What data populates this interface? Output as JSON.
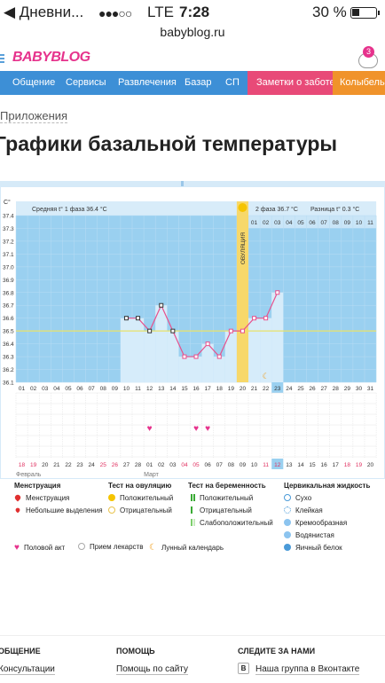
{
  "status_bar": {
    "back_label": "◀ Дневни...",
    "signal": "●●●○○",
    "network": "LTE",
    "time": "7:28",
    "battery": "30 %"
  },
  "url": "babyblog.ru",
  "header": {
    "logo": "BABYBLOG",
    "notifications_count": "3"
  },
  "nav": {
    "items": [
      "Общение",
      "Сервисы",
      "Развлечения",
      "Базар",
      "СП"
    ],
    "highlight_pink": "Заметки о заботе",
    "highlight_orange": "Колыбель"
  },
  "breadcrumb": "Приложения",
  "page_title": "Графики базальной температуры",
  "chart_data": {
    "type": "line",
    "ylabel": "C°",
    "y_ticks": [
      "37.4",
      "37.3",
      "37.2",
      "37.1",
      "37.0",
      "36.9",
      "36.8",
      "36.7",
      "36.6",
      "36.5",
      "36.4",
      "36.3",
      "36.2",
      "36.1"
    ],
    "ylim": [
      36.1,
      37.4
    ],
    "phase1_label": "Средняя t° 1 фаза 36.4 °C",
    "phase2_label": "2 фаза 36.7 °C",
    "diff_label": "Разница t° 0.3 °C",
    "ovulation_label": "ОВУЛЯЦИЯ",
    "ovulation_day": 20,
    "coverline": 36.5,
    "cycle_days": [
      "01",
      "02",
      "03",
      "04",
      "05",
      "06",
      "07",
      "08",
      "09",
      "10",
      "11",
      "12",
      "13",
      "14",
      "15",
      "16",
      "17",
      "18",
      "19",
      "20",
      "21",
      "22",
      "23",
      "24",
      "25",
      "26",
      "27",
      "28",
      "29",
      "30",
      "31"
    ],
    "phase2_days": [
      "01",
      "02",
      "03",
      "04",
      "05",
      "06",
      "07",
      "08",
      "09",
      "10",
      "11"
    ],
    "current_day": 23,
    "temperatures": [
      {
        "day": 10,
        "t": 36.6
      },
      {
        "day": 11,
        "t": 36.6
      },
      {
        "day": 12,
        "t": 36.5
      },
      {
        "day": 13,
        "t": 36.7
      },
      {
        "day": 14,
        "t": 36.5
      },
      {
        "day": 15,
        "t": 36.3
      },
      {
        "day": 16,
        "t": 36.3
      },
      {
        "day": 17,
        "t": 36.4
      },
      {
        "day": 18,
        "t": 36.3
      },
      {
        "day": 19,
        "t": 36.5
      },
      {
        "day": 20,
        "t": 36.5
      },
      {
        "day": 21,
        "t": 36.6
      },
      {
        "day": 22,
        "t": 36.6
      },
      {
        "day": 23,
        "t": 36.8
      }
    ],
    "intercourse_days": [
      12,
      16,
      17
    ],
    "moon_day": 22,
    "dates": [
      "18",
      "19",
      "20",
      "21",
      "22",
      "23",
      "24",
      "25",
      "26",
      "27",
      "28",
      "01",
      "02",
      "03",
      "04",
      "05",
      "06",
      "07",
      "08",
      "09",
      "10",
      "11",
      "12",
      "13",
      "14",
      "15",
      "16",
      "17",
      "18",
      "19",
      "20"
    ],
    "red_date_indexes": [
      0,
      1,
      7,
      8,
      14,
      15,
      21,
      22,
      28,
      29
    ],
    "month_labels": [
      {
        "index": 0,
        "label": "Февраль"
      },
      {
        "index": 11,
        "label": "Март"
      }
    ],
    "today_date_index": 22,
    "grid": true
  },
  "legend": {
    "menstruation": {
      "title": "Менструация",
      "items": [
        "Менструация",
        "Небольшие выделения"
      ]
    },
    "ovulation_test": {
      "title": "Тест на овуляцию",
      "items": [
        "Положительный",
        "Отрицательный"
      ]
    },
    "pregnancy_test": {
      "title": "Тест на беременность",
      "items": [
        "Положительный",
        "Отрицательный",
        "Слабоположительный"
      ]
    },
    "cervical": {
      "title": "Цервикальная жидкость",
      "items": [
        "Сухо",
        "Клейкая",
        "Кремообразная",
        "Водянистая",
        "Яичный белок"
      ]
    },
    "other": [
      "Половой акт",
      "Прием лекарств",
      "Лунный календарь"
    ]
  },
  "footer": {
    "col1_title": "ОБЩЕНИЕ",
    "col1_link": "Консультации",
    "col2_title": "ПОМОЩЬ",
    "col2_link": "Помощь по сайту",
    "col3_title": "СЛЕДИТЕ ЗА НАМИ",
    "col3_link": "Наша группа в Вконтакте",
    "col3_icon_letter": "B"
  }
}
